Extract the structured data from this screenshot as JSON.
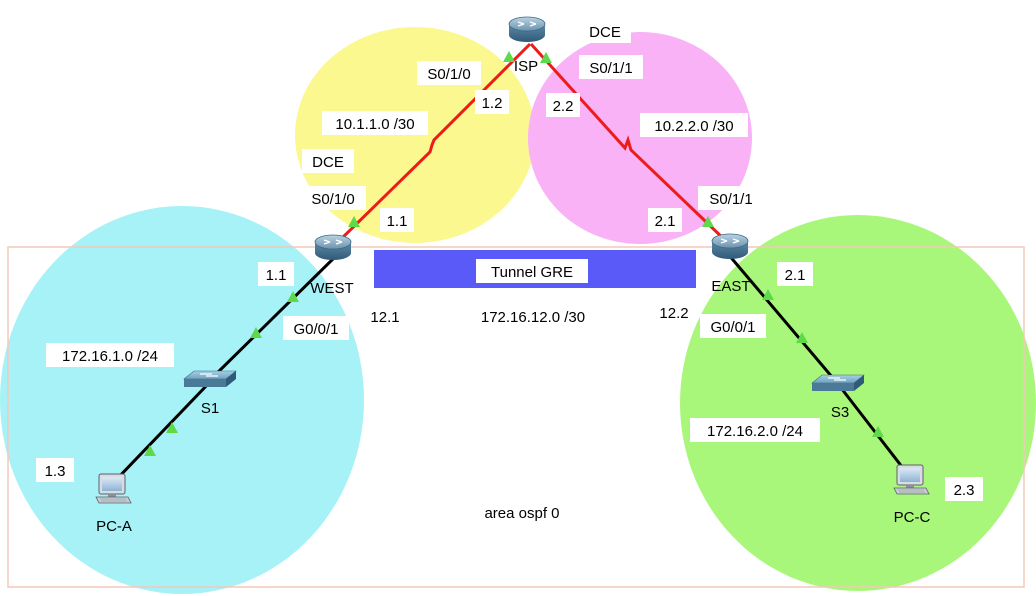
{
  "colors": {
    "zone_west": "#a6f2f7",
    "zone_isp_west": "#fbf890",
    "zone_isp_east": "#f8b2f5",
    "zone_east": "#a9f77a",
    "area_border": "#f3c8b8",
    "tunnel": "#5a5af8",
    "serial_link": "#ee1b1b",
    "ethernet_link": "#000000",
    "port_up": "#5ed94a",
    "label_bg": "#ffffff"
  },
  "devices": {
    "isp": "ISP",
    "west": "WEST",
    "east": "EAST",
    "s1": "S1",
    "s3": "S3",
    "pca": "PC-A",
    "pcc": "PC-C"
  },
  "labels": {
    "dce_isp": "DCE",
    "isp_s010": "S0/1/0",
    "isp_s011": "S0/1/1",
    "isp_west_ip": "1.2",
    "isp_east_ip": "2.2",
    "net_isp_west": "10.1.1.0 /30",
    "net_isp_east": "10.2.2.0 /30",
    "dce_west": "DCE",
    "west_s010": "S0/1/0",
    "west_serial_ip": "1.1",
    "east_s011": "S0/1/1",
    "east_serial_ip": "2.1",
    "tunnel": "Tunnel GRE",
    "tunnel_west_ip": "12.1",
    "tunnel_east_ip": "12.2",
    "tunnel_net": "172.16.12.0 /30",
    "west_lan_ip": "1.1",
    "west_g001": "G0/0/1",
    "east_lan_ip": "2.1",
    "east_g001": "G0/0/1",
    "net_west_lan": "172.16.1.0 /24",
    "net_east_lan": "172.16.2.0 /24",
    "pca_ip": "1.3",
    "pcc_ip": "2.3",
    "area": "area ospf 0"
  },
  "icons": {
    "router": "router-icon",
    "switch": "switch-icon",
    "pc": "pc-icon",
    "port": "port-up-triangle-icon"
  }
}
